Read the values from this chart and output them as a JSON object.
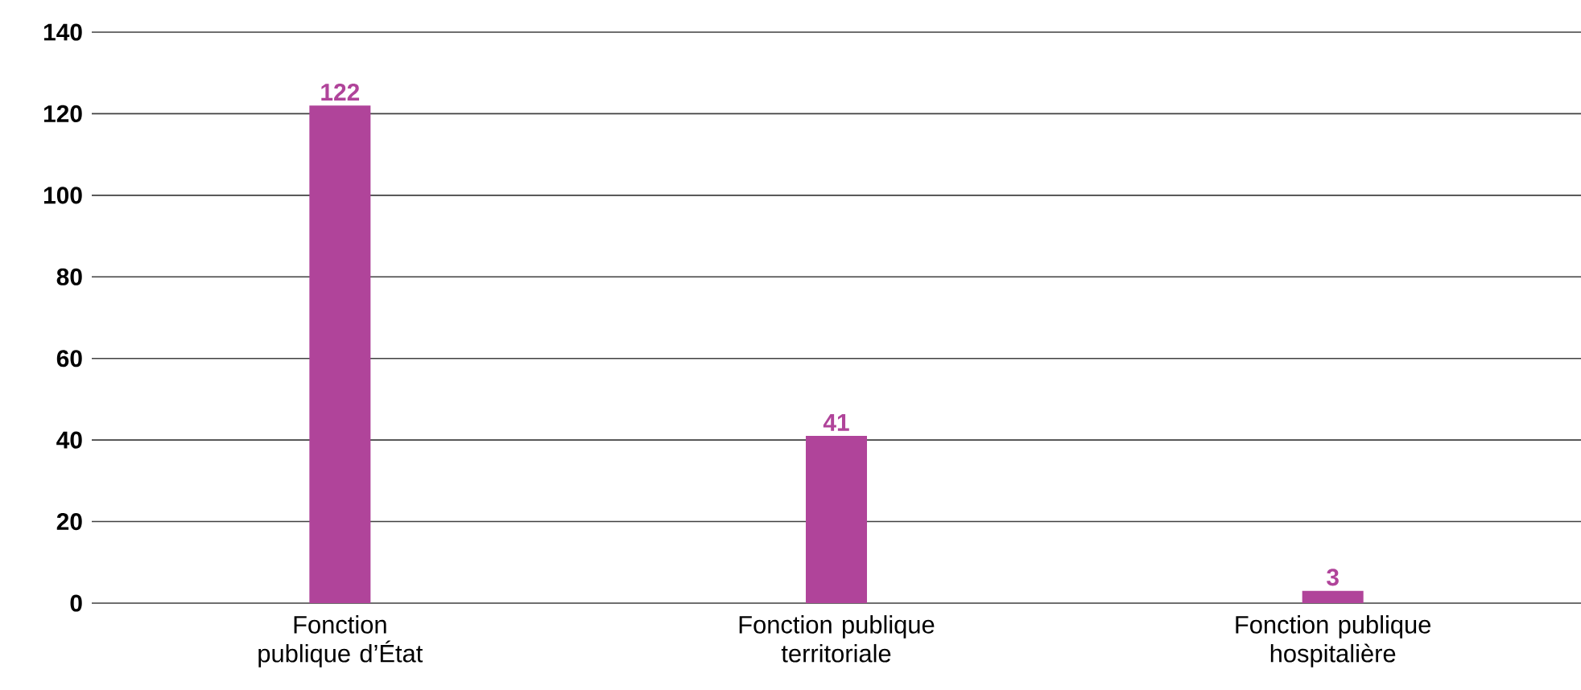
{
  "chart_data": {
    "type": "bar",
    "categories": [
      "Fonction publique d’État",
      "Fonction publique territoriale",
      "Fonction publique hospitalière"
    ],
    "values": [
      122,
      41,
      3
    ],
    "color": "#b0449a",
    "ylim": [
      0,
      140
    ],
    "yticks": [
      0,
      20,
      40,
      60,
      80,
      100,
      120,
      140
    ],
    "grid": "y",
    "data_labels": true
  }
}
